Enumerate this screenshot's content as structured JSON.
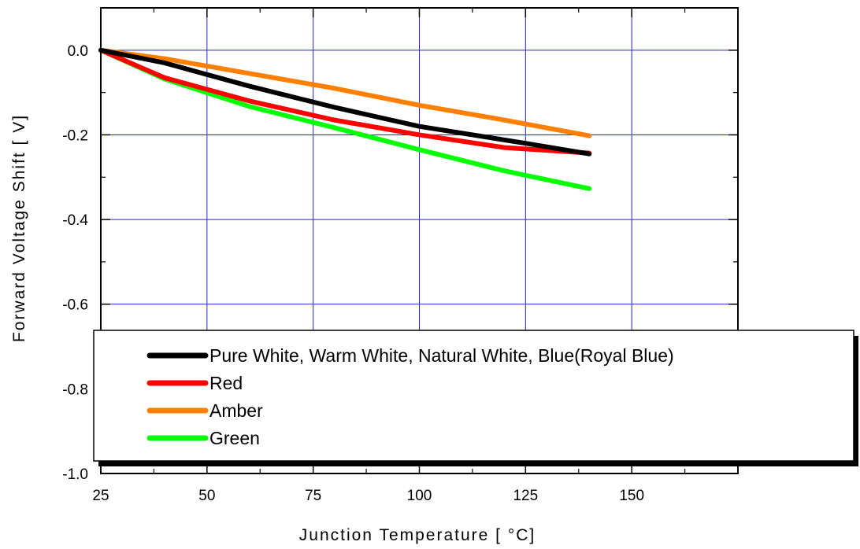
{
  "chart_data": {
    "type": "line",
    "xlabel": "Junction Temperature [ °C]",
    "ylabel": "Forward Voltage Shift [ V]",
    "xlim": [
      25,
      175
    ],
    "ylim": [
      -1.0,
      0.1
    ],
    "x_ticks": [
      25,
      50,
      75,
      100,
      125,
      150
    ],
    "x_tick_labels": [
      "25",
      "50",
      "75",
      "100",
      "125",
      "150"
    ],
    "y_ticks": [
      0.0,
      -0.2,
      -0.4,
      -0.6,
      -0.8,
      -1.0
    ],
    "y_tick_labels": [
      "0.0",
      "-0.2",
      "-0.4",
      "-0.6",
      "-0.8",
      "-1.0"
    ],
    "grid": true,
    "grid_color": "#2222cc",
    "legend_position": "bottom",
    "series": [
      {
        "name": "Pure White, Warm White, Natural White, Blue(Royal Blue)",
        "color": "#000000",
        "x": [
          25,
          40,
          60,
          80,
          100,
          125,
          140
        ],
        "y": [
          0.0,
          -0.03,
          -0.085,
          -0.135,
          -0.18,
          -0.22,
          -0.245
        ]
      },
      {
        "name": "Red",
        "color": "#ff0000",
        "x": [
          25,
          40,
          60,
          80,
          100,
          120,
          140
        ],
        "y": [
          0.0,
          -0.065,
          -0.12,
          -0.165,
          -0.2,
          -0.23,
          -0.243
        ]
      },
      {
        "name": "Amber",
        "color": "#ff8000",
        "x": [
          25,
          40,
          60,
          80,
          100,
          120,
          140
        ],
        "y": [
          0.0,
          -0.02,
          -0.055,
          -0.09,
          -0.13,
          -0.165,
          -0.202
        ]
      },
      {
        "name": "Green",
        "color": "#00ff00",
        "x": [
          25,
          40,
          60,
          80,
          100,
          120,
          140
        ],
        "y": [
          0.0,
          -0.068,
          -0.133,
          -0.183,
          -0.235,
          -0.285,
          -0.327
        ]
      }
    ]
  }
}
